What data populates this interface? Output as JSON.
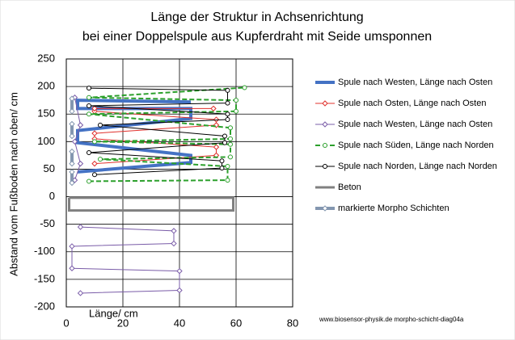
{
  "chart_data": {
    "type": "line",
    "title": "Länge der Struktur in Achsenrichtung",
    "subtitle": "bei einer Doppelspule aus Kupferdraht mit Seide umsponnen",
    "y_label": "Abstand vom Fußboden nach oben/ cm",
    "x_label": "Länge/ cm",
    "footer": "www.biosensor-physik.de  morpho-schicht-diag04a",
    "xlim": [
      0,
      80
    ],
    "xticks": [
      0,
      20,
      40,
      60,
      80
    ],
    "ylim": [
      -200,
      250
    ],
    "yticks": [
      -200,
      -150,
      -100,
      -50,
      0,
      50,
      100,
      150,
      200,
      250
    ],
    "grid": true,
    "legend": "right",
    "series": [
      {
        "name": "Spule nach Westen, Länge nach Osten",
        "color": "#4472c4",
        "width": 4,
        "marker": "none",
        "dash": false,
        "x": [
          4,
          44,
          44,
          4,
          4,
          44,
          44,
          4,
          4,
          44
        ],
        "values": [
          45,
          62,
          75,
          98,
          120,
          142,
          160,
          160,
          175,
          172
        ]
      },
      {
        "name": "Spule nach Osten, Länge nach Osten",
        "color": "#e0302c",
        "width": 1,
        "marker": "diamond",
        "dash": false,
        "x": [
          10,
          53,
          53,
          10,
          10,
          53,
          53,
          10,
          10,
          52
        ],
        "values": [
          60,
          75,
          90,
          105,
          115,
          130,
          140,
          155,
          160,
          160
        ]
      },
      {
        "name": "Spule nach Westen, Länge nach Osten",
        "color": "#7a5ca8",
        "width": 1,
        "marker": "diamond",
        "dash": false,
        "x": [
          3,
          5,
          3,
          5,
          3,
          null,
          5,
          38,
          38,
          2,
          2,
          40,
          40,
          5
        ],
        "values": [
          30,
          60,
          100,
          130,
          180,
          null,
          -55,
          -62,
          -85,
          -90,
          -130,
          -135,
          -170,
          -175
        ]
      },
      {
        "name": "Spule nach Süden, Länge nach Norden",
        "color": "#2ca02c",
        "width": 2,
        "marker": "circle",
        "dash": true,
        "x": [
          8,
          57,
          57,
          12,
          58,
          58,
          10,
          58,
          58,
          8,
          60,
          60,
          8,
          63
        ],
        "values": [
          28,
          30,
          55,
          68,
          72,
          95,
          100,
          105,
          125,
          150,
          155,
          175,
          180,
          198
        ]
      },
      {
        "name": "Spule nach Norden, Länge nach Norden",
        "color": "#000000",
        "width": 1,
        "marker": "circle",
        "dash": false,
        "x": [
          10,
          55,
          55,
          8,
          56,
          56,
          12,
          57,
          57,
          8,
          57,
          57,
          8
        ],
        "values": [
          40,
          52,
          65,
          80,
          98,
          110,
          130,
          140,
          150,
          165,
          170,
          193,
          197
        ]
      },
      {
        "name": "Beton",
        "color": "#808080",
        "width": 3,
        "marker": "none",
        "dash": false,
        "x": [
          1,
          59,
          59,
          1,
          1
        ],
        "values": [
          -2,
          -2,
          -25,
          -25,
          -2
        ]
      },
      {
        "name": "markierte Morpho Schichten",
        "color": "#8497b0",
        "width": 4,
        "marker": "diamond",
        "dash": false,
        "x": [
          2,
          2,
          null,
          2,
          2,
          null,
          2,
          2,
          null,
          2,
          2
        ],
        "values": [
          155,
          178,
          null,
          110,
          132,
          null,
          60,
          82,
          null,
          25,
          45
        ]
      }
    ]
  }
}
